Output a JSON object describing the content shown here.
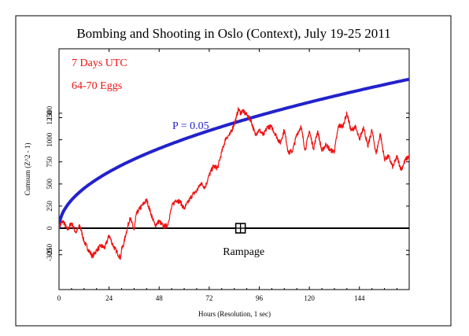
{
  "chart_data": {
    "type": "line",
    "title": "Bombing and Shooting in Oslo (Context), July 19-25 2011",
    "xlabel": "Hours (Resolution, 1 sec)",
    "ylabel": "Cumsum (Z^2 - 1)",
    "xlim": [
      0,
      168
    ],
    "ylim": [
      -300,
      1300
    ],
    "x_ticks": [
      0,
      24,
      48,
      72,
      96,
      120,
      144
    ],
    "y_ticks": [
      -300,
      -250,
      0,
      250,
      500,
      750,
      1000,
      1250,
      1300
    ],
    "grid": false,
    "annotations": {
      "period": "7 Days UTC",
      "eggs": "64-70 Eggs",
      "event_label": "Rampage",
      "event_x": 87
    },
    "colors": {
      "data": "#ee1111",
      "envelope": "#2222cc",
      "baseline": "#000000",
      "annotation_text": "#ee1111",
      "envelope_label": "#2222cc"
    },
    "series": [
      {
        "name": "P = 0.05",
        "kind": "envelope",
        "note": "y = 130 * sqrt(x)"
      },
      {
        "kind": "data",
        "x": [
          0,
          2,
          4,
          6,
          8,
          10,
          12,
          14,
          16,
          18,
          20,
          22,
          24,
          26,
          28,
          29.5,
          30,
          31,
          32,
          34,
          36,
          37,
          38,
          40,
          42,
          44,
          46,
          48,
          50,
          52,
          54,
          56,
          58,
          60,
          62,
          64,
          66,
          68,
          70,
          72,
          74,
          76,
          78,
          80,
          82,
          84,
          85,
          86,
          87,
          88,
          90,
          92,
          94,
          96,
          98,
          100,
          102,
          104,
          106,
          108,
          110,
          112,
          114,
          116,
          118,
          120,
          122,
          124,
          126,
          128,
          130,
          132,
          134,
          136,
          138,
          140,
          142,
          144,
          146,
          148,
          150,
          152,
          154,
          156,
          158,
          160,
          162,
          164,
          166,
          168
        ],
        "y": [
          20,
          80,
          -20,
          60,
          -50,
          30,
          -150,
          -240,
          -320,
          -250,
          -200,
          -220,
          -80,
          -200,
          -280,
          -340,
          -240,
          -180,
          -70,
          120,
          -20,
          150,
          200,
          260,
          320,
          170,
          30,
          80,
          20,
          30,
          240,
          320,
          300,
          220,
          300,
          380,
          420,
          510,
          460,
          600,
          700,
          680,
          860,
          1020,
          1060,
          1180,
          1250,
          1350,
          1300,
          1330,
          1280,
          1220,
          1060,
          1110,
          1050,
          1150,
          1140,
          1050,
          960,
          1110,
          850,
          880,
          1060,
          1150,
          880,
          1100,
          900,
          1100,
          870,
          950,
          880,
          870,
          1160,
          1150,
          1300,
          1100,
          1150,
          1000,
          1150,
          920,
          1110,
          840,
          1070,
          780,
          810,
          690,
          810,
          660,
          770,
          820
        ]
      }
    ]
  }
}
